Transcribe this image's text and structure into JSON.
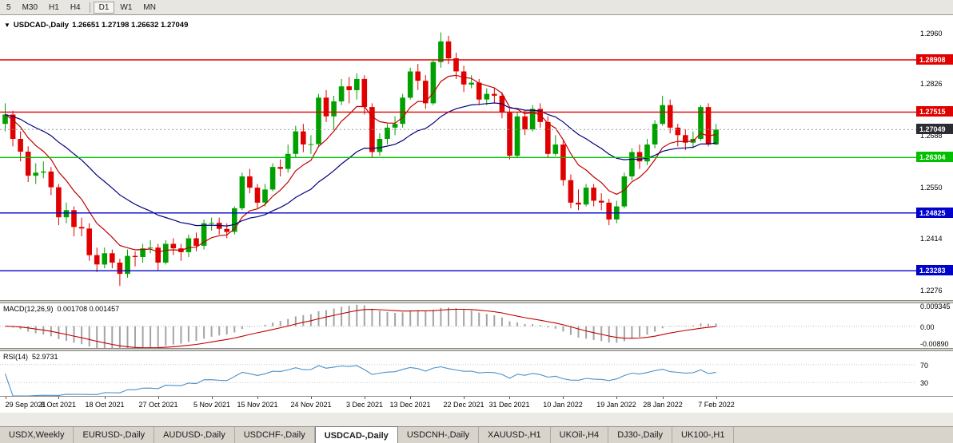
{
  "toolbar": {
    "timeframes": [
      "5",
      "M30",
      "H1",
      "H4",
      "D1",
      "W1",
      "MN"
    ],
    "active_timeframe": "D1"
  },
  "chart_header": {
    "dropdown_icon": "▼",
    "symbol": "USDCAD-,Daily",
    "ohlc": "1.26651 1.27198 1.26632 1.27049"
  },
  "chart_data": {
    "type": "candlestick",
    "symbol": "USDCAD",
    "timeframe": "Daily",
    "last_ohlc": {
      "open": 1.26651,
      "high": 1.27198,
      "low": 1.26632,
      "close": 1.27049
    },
    "price_range": {
      "min": 1.225,
      "max": 1.301
    },
    "y_ticks": [
      "1.2960",
      "1.2826",
      "1.2688",
      "1.2550",
      "1.2414",
      "1.2276"
    ],
    "x_labels": [
      "29 Sep 2021",
      "8 Oct 2021",
      "18 Oct 2021",
      "27 Oct 2021",
      "5 Nov 2021",
      "15 Nov 2021",
      "24 Nov 2021",
      "3 Dec 2021",
      "13 Dec 2021",
      "22 Dec 2021",
      "31 Dec 2021",
      "10 Jan 2022",
      "19 Jan 2022",
      "28 Jan 2022",
      "7 Feb 2022"
    ],
    "horizontal_lines": [
      {
        "price": 1.28908,
        "label": "1.28908",
        "color": "#e00000"
      },
      {
        "price": 1.27515,
        "label": "1.27515",
        "color": "#e00000"
      },
      {
        "price": 1.26304,
        "label": "1.26304",
        "color": "#00c000"
      },
      {
        "price": 1.24825,
        "label": "1.24825",
        "color": "#0000cc"
      },
      {
        "price": 1.23283,
        "label": "1.23283",
        "color": "#0000cc"
      }
    ],
    "current_price": {
      "price": 1.27049,
      "label": "1.27049",
      "color": "#2b2b33"
    },
    "candle_colors": {
      "up": "#00a000",
      "down": "#e00000"
    },
    "moving_averages": [
      {
        "period": 8,
        "color": "#c00000"
      },
      {
        "period": 24,
        "color": "#000080"
      }
    ],
    "candles": [
      [
        1.272,
        1.2775,
        1.27,
        1.2745
      ],
      [
        1.2745,
        1.2755,
        1.266,
        1.268
      ],
      [
        1.268,
        1.27,
        1.262,
        1.2646
      ],
      [
        1.2646,
        1.266,
        1.2565,
        1.2582
      ],
      [
        1.2582,
        1.2615,
        1.256,
        1.259
      ],
      [
        1.259,
        1.262,
        1.2575,
        1.2593
      ],
      [
        1.2593,
        1.2605,
        1.253,
        1.2551
      ],
      [
        1.2551,
        1.256,
        1.245,
        1.2471
      ],
      [
        1.2471,
        1.251,
        1.2455,
        1.249
      ],
      [
        1.249,
        1.25,
        1.242,
        1.2445
      ],
      [
        1.2445,
        1.247,
        1.242,
        1.2441
      ],
      [
        1.2441,
        1.2455,
        1.2355,
        1.237
      ],
      [
        1.237,
        1.239,
        1.2325,
        1.2345
      ],
      [
        1.2345,
        1.239,
        1.2335,
        1.2375
      ],
      [
        1.2375,
        1.2385,
        1.2335,
        1.235
      ],
      [
        1.235,
        1.236,
        1.2288,
        1.232
      ],
      [
        1.232,
        1.2385,
        1.231,
        1.2368
      ],
      [
        1.2368,
        1.238,
        1.234,
        1.2365
      ],
      [
        1.2365,
        1.24,
        1.235,
        1.2388
      ],
      [
        1.2388,
        1.241,
        1.2375,
        1.239
      ],
      [
        1.239,
        1.24,
        1.233,
        1.235
      ],
      [
        1.235,
        1.241,
        1.2345,
        1.24
      ],
      [
        1.24,
        1.2415,
        1.237,
        1.2388
      ],
      [
        1.2388,
        1.24,
        1.2355,
        1.2378
      ],
      [
        1.2378,
        1.2425,
        1.2365,
        1.2415
      ],
      [
        1.2415,
        1.243,
        1.238,
        1.2395
      ],
      [
        1.2395,
        1.2465,
        1.2385,
        1.2455
      ],
      [
        1.2455,
        1.247,
        1.2435,
        1.2456
      ],
      [
        1.2456,
        1.247,
        1.2425,
        1.244
      ],
      [
        1.244,
        1.2455,
        1.2415,
        1.2432
      ],
      [
        1.2432,
        1.25,
        1.2425,
        1.2495
      ],
      [
        1.2495,
        1.259,
        1.249,
        1.258
      ],
      [
        1.258,
        1.26,
        1.2535,
        1.255
      ],
      [
        1.255,
        1.256,
        1.2495,
        1.251
      ],
      [
        1.251,
        1.256,
        1.25,
        1.2545
      ],
      [
        1.2545,
        1.2615,
        1.254,
        1.2605
      ],
      [
        1.2605,
        1.2625,
        1.258,
        1.26
      ],
      [
        1.26,
        1.2665,
        1.259,
        1.264
      ],
      [
        1.264,
        1.2715,
        1.263,
        1.27
      ],
      [
        1.27,
        1.272,
        1.2645,
        1.2665
      ],
      [
        1.2665,
        1.269,
        1.264,
        1.2666
      ],
      [
        1.2666,
        1.28,
        1.266,
        1.279
      ],
      [
        1.279,
        1.281,
        1.2725,
        1.274
      ],
      [
        1.274,
        1.2795,
        1.2705,
        1.278
      ],
      [
        1.278,
        1.284,
        1.277,
        1.282
      ],
      [
        1.282,
        1.2845,
        1.2775,
        1.281
      ],
      [
        1.281,
        1.2855,
        1.2785,
        1.284
      ],
      [
        1.284,
        1.285,
        1.2745,
        1.2765
      ],
      [
        1.2765,
        1.2775,
        1.263,
        1.2645
      ],
      [
        1.2645,
        1.2695,
        1.2635,
        1.268
      ],
      [
        1.268,
        1.272,
        1.2665,
        1.271
      ],
      [
        1.271,
        1.274,
        1.269,
        1.272
      ],
      [
        1.272,
        1.28,
        1.271,
        1.279
      ],
      [
        1.279,
        1.287,
        1.2785,
        1.286
      ],
      [
        1.286,
        1.288,
        1.281,
        1.2835
      ],
      [
        1.2835,
        1.285,
        1.276,
        1.2775
      ],
      [
        1.2775,
        1.289,
        1.277,
        1.2885
      ],
      [
        1.2885,
        1.2964,
        1.287,
        1.294
      ],
      [
        1.294,
        1.2955,
        1.288,
        1.2895
      ],
      [
        1.2895,
        1.291,
        1.284,
        1.286
      ],
      [
        1.286,
        1.2875,
        1.2805,
        1.2825
      ],
      [
        1.2825,
        1.285,
        1.2815,
        1.283
      ],
      [
        1.283,
        1.284,
        1.277,
        1.2785
      ],
      [
        1.2785,
        1.2815,
        1.277,
        1.28
      ],
      [
        1.28,
        1.2815,
        1.2775,
        1.2795
      ],
      [
        1.2795,
        1.2805,
        1.2735,
        1.275
      ],
      [
        1.275,
        1.276,
        1.2625,
        1.2635
      ],
      [
        1.2635,
        1.275,
        1.263,
        1.274
      ],
      [
        1.274,
        1.2755,
        1.269,
        1.2705
      ],
      [
        1.2705,
        1.277,
        1.27,
        1.276
      ],
      [
        1.276,
        1.2775,
        1.271,
        1.2725
      ],
      [
        1.2725,
        1.274,
        1.263,
        1.264
      ],
      [
        1.264,
        1.269,
        1.2635,
        1.2665
      ],
      [
        1.2665,
        1.2675,
        1.2555,
        1.257
      ],
      [
        1.257,
        1.2585,
        1.2495,
        1.251
      ],
      [
        1.251,
        1.2545,
        1.249,
        1.2505
      ],
      [
        1.2505,
        1.256,
        1.25,
        1.255
      ],
      [
        1.255,
        1.256,
        1.25,
        1.2515
      ],
      [
        1.2515,
        1.2535,
        1.249,
        1.251
      ],
      [
        1.251,
        1.252,
        1.245,
        1.2465
      ],
      [
        1.2465,
        1.2515,
        1.2455,
        1.25
      ],
      [
        1.25,
        1.259,
        1.2495,
        1.258
      ],
      [
        1.258,
        1.2655,
        1.257,
        1.2645
      ],
      [
        1.2645,
        1.2665,
        1.26,
        1.262
      ],
      [
        1.262,
        1.268,
        1.261,
        1.2665
      ],
      [
        1.2665,
        1.273,
        1.2655,
        1.272
      ],
      [
        1.272,
        1.2795,
        1.2715,
        1.277
      ],
      [
        1.277,
        1.2785,
        1.2695,
        1.271
      ],
      [
        1.271,
        1.272,
        1.266,
        1.269
      ],
      [
        1.269,
        1.2705,
        1.265,
        1.267
      ],
      [
        1.267,
        1.27,
        1.2655,
        1.268
      ],
      [
        1.268,
        1.277,
        1.2675,
        1.2765
      ],
      [
        1.2765,
        1.2775,
        1.266,
        1.2665
      ],
      [
        1.26651,
        1.27198,
        1.26632,
        1.27049
      ]
    ],
    "indicators": {
      "macd": {
        "label": "MACD(12,26,9)",
        "values_display": "0.001708 0.001457",
        "params": {
          "fast": 12,
          "slow": 26,
          "signal": 9
        },
        "range": {
          "min": -0.0089,
          "max": 0.009345
        },
        "y_ticks": [
          "0.009345",
          "0.00",
          "-0.00890"
        ],
        "histogram_color": "#a4a4a4",
        "signal_color": "#c00000"
      },
      "rsi": {
        "label": "RSI(14)",
        "value_display": "52.9731",
        "period": 14,
        "levels": [
          70,
          30
        ],
        "y_ticks": [
          "70",
          "30"
        ],
        "range": {
          "min": 0,
          "max": 100
        },
        "line_color": "#4a90c8"
      }
    }
  },
  "tabs": {
    "items": [
      "USDX,Weekly",
      "EURUSD-,Daily",
      "AUDUSD-,Daily",
      "USDCHF-,Daily",
      "USDCAD-,Daily",
      "USDCNH-,Daily",
      "XAUUSD-,H1",
      "UKOil-,H4",
      "DJ30-,Daily",
      "UK100-,H1"
    ],
    "active": "USDCAD-,Daily"
  }
}
